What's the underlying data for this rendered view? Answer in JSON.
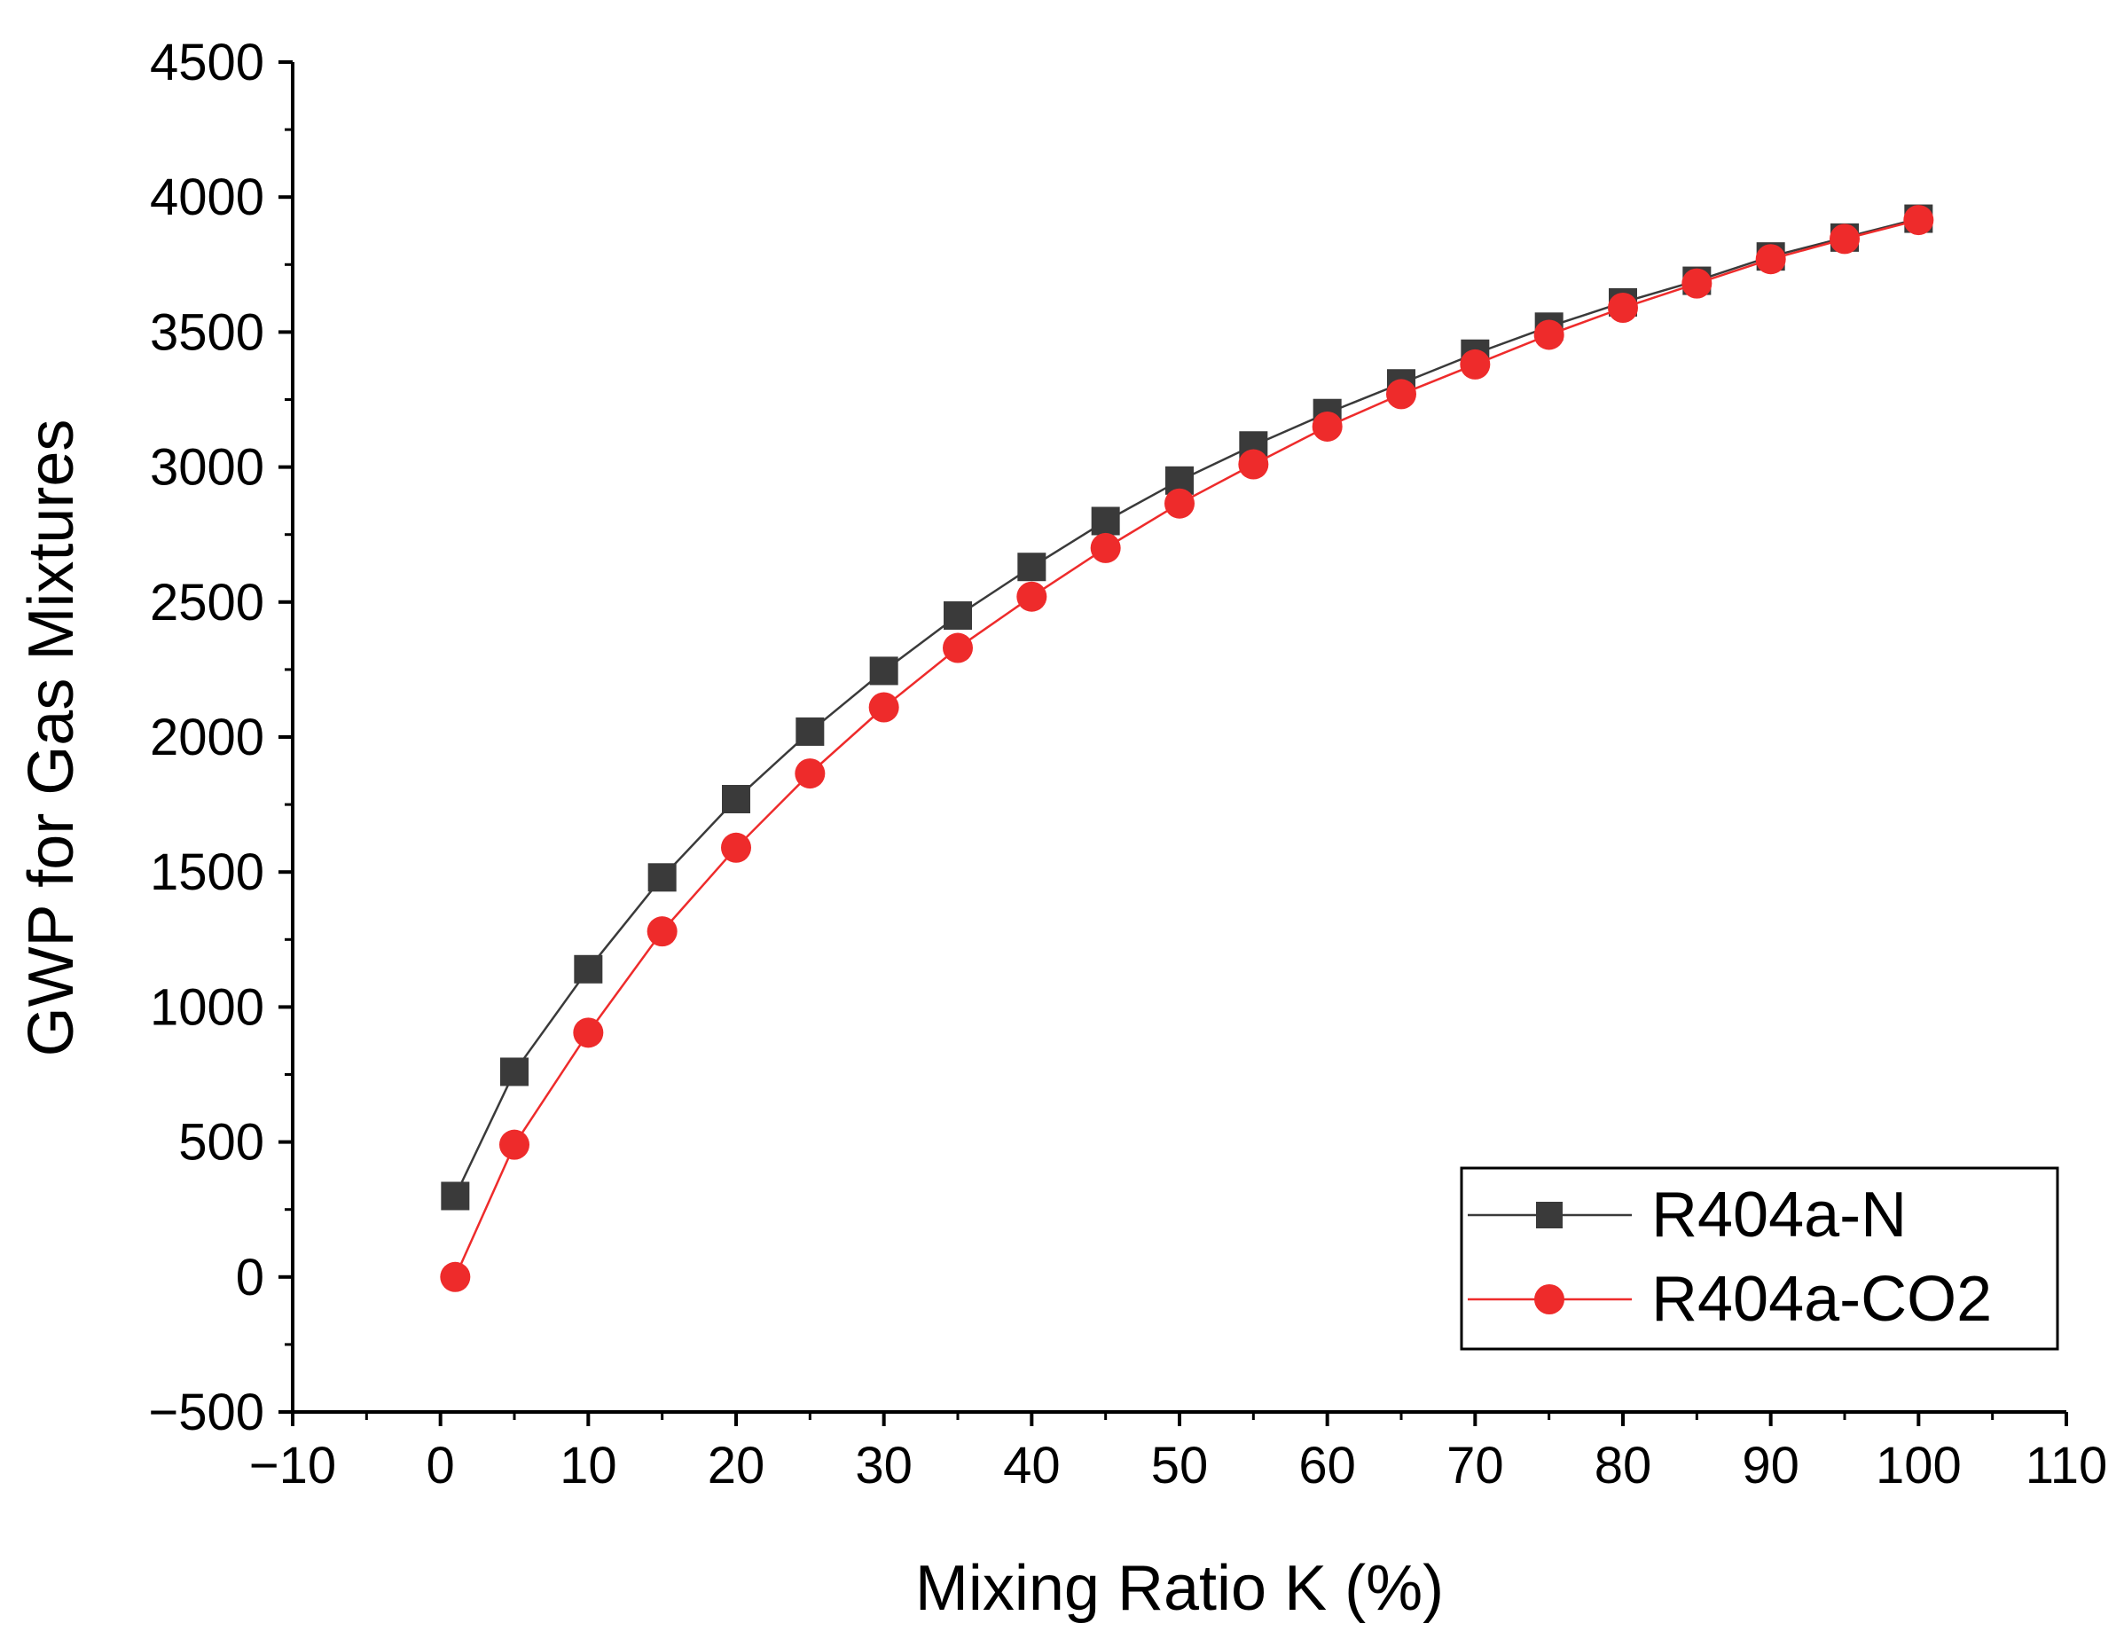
{
  "chart_data": {
    "type": "line",
    "title": "",
    "xlabel": "Mixing Ratio K (%)",
    "ylabel": "GWP for Gas Mixtures",
    "xlim": [
      -10,
      110
    ],
    "ylim": [
      -500,
      4500
    ],
    "xticks": [
      -10,
      0,
      10,
      20,
      30,
      40,
      50,
      60,
      70,
      80,
      90,
      100,
      110
    ],
    "yticks": [
      -500,
      0,
      500,
      1000,
      1500,
      2000,
      2500,
      3000,
      3500,
      4000,
      4500
    ],
    "xtick_labels": [
      "−10",
      "0",
      "10",
      "20",
      "30",
      "40",
      "50",
      "60",
      "70",
      "80",
      "90",
      "100",
      "110"
    ],
    "ytick_labels": [
      "−500",
      "0",
      "500",
      "1000",
      "1500",
      "2000",
      "2500",
      "3000",
      "3500",
      "4000",
      "4500"
    ],
    "x": [
      1,
      5,
      10,
      15,
      20,
      25,
      30,
      35,
      40,
      45,
      50,
      55,
      60,
      65,
      70,
      75,
      80,
      85,
      90,
      95,
      100
    ],
    "series": [
      {
        "name": "R404a-N",
        "color": "#3a3a3a",
        "marker": "square",
        "values": [
          300,
          760,
          1140,
          1480,
          1770,
          2020,
          2245,
          2450,
          2630,
          2800,
          2950,
          3080,
          3200,
          3310,
          3420,
          3520,
          3610,
          3690,
          3780,
          3850,
          3920
        ]
      },
      {
        "name": "R404a-CO2",
        "color": "#ee2b2b",
        "marker": "circle",
        "values": [
          0,
          490,
          905,
          1280,
          1590,
          1865,
          2110,
          2330,
          2520,
          2700,
          2865,
          3010,
          3150,
          3270,
          3380,
          3490,
          3590,
          3680,
          3770,
          3845,
          3915
        ]
      }
    ],
    "legend": {
      "position": "bottom-right",
      "entries": [
        "R404a-N",
        "R404a-CO2"
      ]
    },
    "grid": false
  }
}
